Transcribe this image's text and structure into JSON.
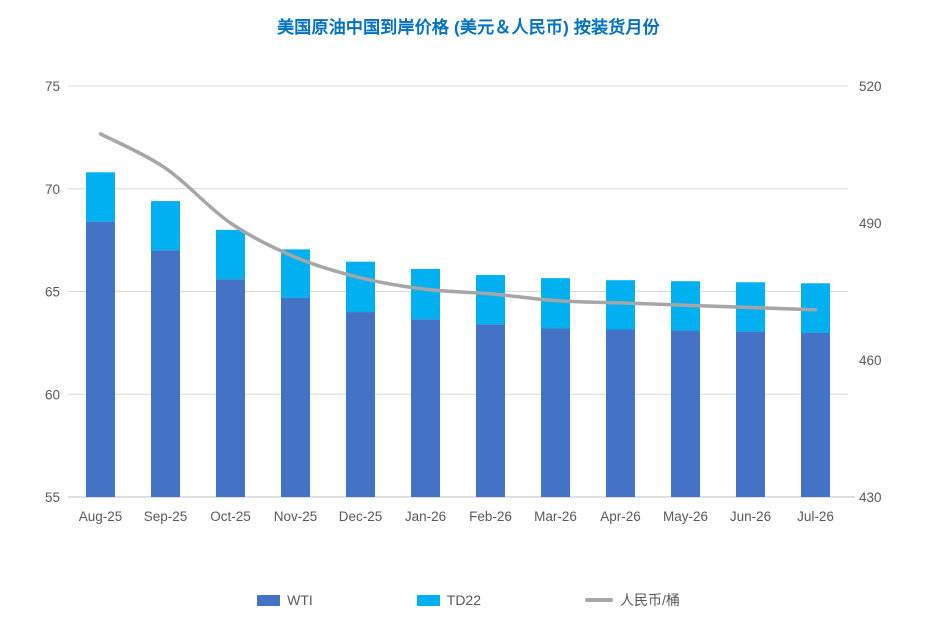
{
  "title": "美国原油中国到岸价格 (美元＆人民币) 按装货月份",
  "colors": {
    "title": "#0070C0",
    "wti": "#4472C4",
    "td22": "#00B0F0",
    "rmb_line": "#A6A6A6",
    "axis_text": "#595959",
    "gridline": "#D9D9D9",
    "axis_line": "#BFBFBF"
  },
  "legend": {
    "items": [
      "WTI",
      "TD22",
      "人民币/桶"
    ]
  },
  "chart_data": {
    "type": "combo_stacked_bar_line",
    "title": "美国原油中国到岸价格 (美元＆人民币) 按装货月份",
    "categories": [
      "Aug-25",
      "Sep-25",
      "Oct-25",
      "Nov-25",
      "Dec-25",
      "Jan-26",
      "Feb-26",
      "Mar-26",
      "Apr-26",
      "May-26",
      "Jun-26",
      "Jul-26"
    ],
    "series": [
      {
        "name": "WTI",
        "type": "bar",
        "stack": "usd",
        "axis": "left",
        "values": [
          68.4,
          67.0,
          65.6,
          64.7,
          64.0,
          63.65,
          63.4,
          63.2,
          63.15,
          63.1,
          63.05,
          63.0
        ]
      },
      {
        "name": "TD22",
        "type": "bar",
        "stack": "usd",
        "axis": "left",
        "values": [
          2.4,
          2.4,
          2.4,
          2.35,
          2.45,
          2.45,
          2.4,
          2.45,
          2.4,
          2.4,
          2.4,
          2.4
        ]
      },
      {
        "name": "人民币/桶",
        "type": "line",
        "axis": "right",
        "values": [
          509.5,
          502.0,
          490.0,
          482.5,
          478.0,
          475.5,
          474.5,
          473.0,
          472.5,
          472.0,
          471.5,
          471.0
        ]
      }
    ],
    "xlabel": "",
    "ylabel_left": "",
    "ylabel_right": "",
    "ylim_left": [
      55,
      75
    ],
    "ylim_right": [
      430,
      520
    ],
    "yticks_left": [
      75,
      70,
      65,
      60,
      55
    ],
    "yticks_right": [
      520,
      490,
      460,
      430
    ],
    "grid": true,
    "legend_position": "bottom"
  }
}
